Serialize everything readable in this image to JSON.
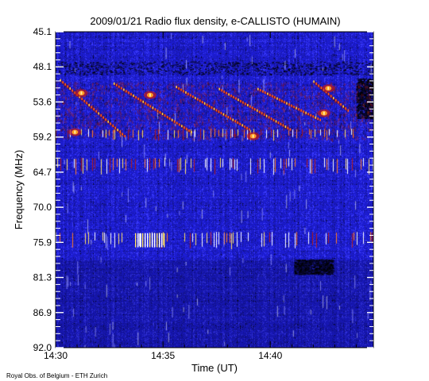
{
  "chart_data": {
    "type": "heatmap",
    "title": "2009/01/21  Radio flux density, e-CALLISTO (HUMAIN)",
    "xlabel": "Time (UT)",
    "ylabel": "Frequency (MHz)",
    "x_ticks": [
      "14:30",
      "14:35",
      "14:40"
    ],
    "x_range_minutes": [
      0,
      14.8
    ],
    "y_ticks": [
      "45.1",
      "48.1",
      "53.6",
      "59.2",
      "64.7",
      "70.0",
      "75.9",
      "81.3",
      "86.9",
      "92.0"
    ],
    "ylim": [
      92.0,
      45.1
    ],
    "colormap": [
      "#000000",
      "#0a0a3a",
      "#1a1acc",
      "#3c3cff",
      "#8a1010",
      "#e03000",
      "#ff8000",
      "#ffe060",
      "#ffffff"
    ],
    "background_color": "#1c1cb4",
    "burst_tracks": [
      {
        "t_start": 0.2,
        "t_end": 3.2,
        "f_start": 52.3,
        "f_end": 60.6
      },
      {
        "t_start": 2.7,
        "t_end": 6.3,
        "f_start": 52.8,
        "f_end": 60.0
      },
      {
        "t_start": 5.6,
        "t_end": 9.0,
        "f_start": 53.3,
        "f_end": 59.6
      },
      {
        "t_start": 7.6,
        "t_end": 10.9,
        "f_start": 53.6,
        "f_end": 59.6
      },
      {
        "t_start": 9.4,
        "t_end": 12.3,
        "f_start": 53.6,
        "f_end": 58.2
      },
      {
        "t_start": 12.0,
        "t_end": 13.6,
        "f_start": 52.5,
        "f_end": 56.8
      }
    ],
    "emission_band_mhz": [
      52.5,
      61.0
    ],
    "hot_spots": [
      {
        "t": 1.2,
        "f": 54.2
      },
      {
        "t": 0.9,
        "f": 60.0
      },
      {
        "t": 4.4,
        "f": 54.5
      },
      {
        "t": 9.2,
        "f": 60.6
      },
      {
        "t": 12.7,
        "f": 53.5
      },
      {
        "t": 12.5,
        "f": 57.2
      }
    ],
    "vertical_stripe_bands": [
      {
        "f_from": 63.8,
        "f_to": 66.2
      },
      {
        "f_from": 74.8,
        "f_to": 77.2
      },
      {
        "f_from": 59.5,
        "f_to": 61.2
      }
    ],
    "bright_stripe_clusters": [
      {
        "t_from": 3.7,
        "t_to": 5.1,
        "f_from": 75.0,
        "f_to": 77.1
      }
    ],
    "quiet_patches": [
      {
        "t_from": 11.1,
        "t_to": 12.9,
        "f_from": 78.9,
        "f_to": 81.1
      },
      {
        "t_from": 14.0,
        "t_to": 14.8,
        "f_from": 52.0,
        "f_to": 58.0
      },
      {
        "t_from": 0.0,
        "t_to": 14.8,
        "f_from": 49.5,
        "f_to": 51.5
      }
    ],
    "grid": false,
    "legend": "none"
  },
  "credit": "Royal Obs. of Belgium - ETH Zurich"
}
